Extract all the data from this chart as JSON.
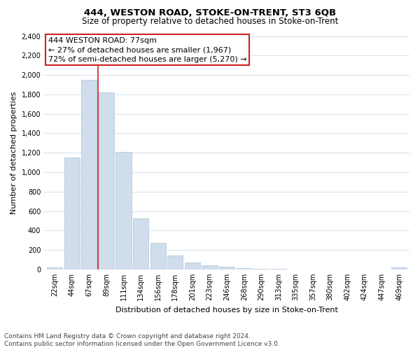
{
  "title": "444, WESTON ROAD, STOKE-ON-TRENT, ST3 6QB",
  "subtitle": "Size of property relative to detached houses in Stoke-on-Trent",
  "xlabel": "Distribution of detached houses by size in Stoke-on-Trent",
  "ylabel": "Number of detached properties",
  "footnote1": "Contains HM Land Registry data © Crown copyright and database right 2024.",
  "footnote2": "Contains public sector information licensed under the Open Government Licence v3.0.",
  "annotation_line1": "444 WESTON ROAD: 77sqm",
  "annotation_line2": "← 27% of detached houses are smaller (1,967)",
  "annotation_line3": "72% of semi-detached houses are larger (5,270) →",
  "categories": [
    "22sqm",
    "44sqm",
    "67sqm",
    "89sqm",
    "111sqm",
    "134sqm",
    "156sqm",
    "178sqm",
    "201sqm",
    "223sqm",
    "246sqm",
    "268sqm",
    "290sqm",
    "313sqm",
    "335sqm",
    "357sqm",
    "380sqm",
    "402sqm",
    "424sqm",
    "447sqm",
    "469sqm"
  ],
  "values": [
    20,
    1150,
    1950,
    1820,
    1210,
    525,
    270,
    145,
    75,
    40,
    25,
    15,
    7,
    4,
    2,
    2,
    1,
    0,
    0,
    0,
    20
  ],
  "bar_color": "#cfdded",
  "bar_edge_color": "#aec6db",
  "highlight_color": "#cc2222",
  "grid_color": "#d8e4f0",
  "background_color": "#ffffff",
  "ylim": [
    0,
    2400
  ],
  "yticks": [
    0,
    200,
    400,
    600,
    800,
    1000,
    1200,
    1400,
    1600,
    1800,
    2000,
    2200,
    2400
  ],
  "red_line_x": 2.5,
  "title_fontsize": 9.5,
  "subtitle_fontsize": 8.5,
  "annotation_fontsize": 8,
  "axis_label_fontsize": 8,
  "tick_fontsize": 7,
  "footnote_fontsize": 6.5
}
